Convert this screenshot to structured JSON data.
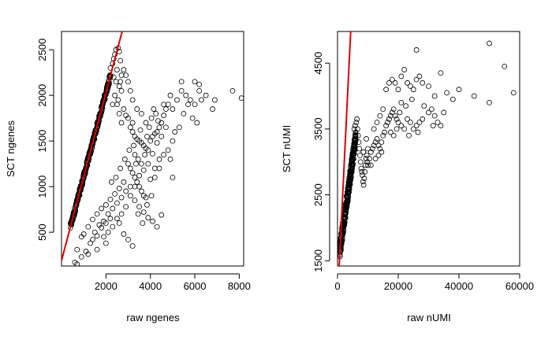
{
  "chart_data": [
    {
      "type": "scatter",
      "title": "",
      "xlabel": "raw ngenes",
      "ylabel": "SCT ngenes",
      "xlim": [
        0,
        8200
      ],
      "ylim": [
        130,
        2700
      ],
      "xticks": [
        2000,
        4000,
        6000,
        8000
      ],
      "yticks": [
        500,
        1000,
        1500,
        2000,
        2500
      ],
      "xtick_labels": [
        "2000",
        "4000",
        "6000",
        "8000"
      ],
      "ytick_labels": [
        "500",
        "1000",
        "1500",
        "2000",
        "2500"
      ],
      "fit_line": {
        "color": "#e00000",
        "slope": 0.92,
        "intercept": 190
      },
      "dense_band": {
        "x_from": 400,
        "x_to": 2200,
        "slope": 0.92,
        "intercept": 190,
        "spread": 35,
        "count": 260
      },
      "cloud_points": [
        [
          2200,
          2300
        ],
        [
          2300,
          2350
        ],
        [
          2350,
          2400
        ],
        [
          2400,
          2450
        ],
        [
          2450,
          2500
        ],
        [
          2550,
          2520
        ],
        [
          2600,
          2480
        ],
        [
          2650,
          2380
        ],
        [
          2500,
          2280
        ],
        [
          2350,
          2200
        ],
        [
          2450,
          2150
        ],
        [
          2600,
          2100
        ],
        [
          2700,
          2050
        ],
        [
          2400,
          2000
        ],
        [
          2300,
          1900
        ],
        [
          2500,
          1900
        ],
        [
          2800,
          1850
        ],
        [
          2600,
          1800
        ],
        [
          2900,
          1780
        ],
        [
          3000,
          1750
        ],
        [
          2700,
          1700
        ],
        [
          3100,
          1650
        ],
        [
          3200,
          1600
        ],
        [
          3300,
          1550
        ],
        [
          3400,
          1520
        ],
        [
          3500,
          1500
        ],
        [
          3600,
          1480
        ],
        [
          3700,
          1450
        ],
        [
          3800,
          1420
        ],
        [
          3900,
          1400
        ],
        [
          4000,
          1500
        ],
        [
          4100,
          1550
        ],
        [
          4200,
          1580
        ],
        [
          4300,
          1600
        ],
        [
          4400,
          1650
        ],
        [
          4500,
          1700
        ],
        [
          4600,
          1780
        ],
        [
          4700,
          1850
        ],
        [
          4800,
          1900
        ],
        [
          4900,
          2000
        ],
        [
          3000,
          1250
        ],
        [
          3100,
          1200
        ],
        [
          3200,
          1150
        ],
        [
          3300,
          1100
        ],
        [
          3400,
          1050
        ],
        [
          3500,
          1000
        ],
        [
          3600,
          950
        ],
        [
          3700,
          900
        ],
        [
          3800,
          880
        ],
        [
          4000,
          1080
        ],
        [
          4200,
          1200
        ],
        [
          4400,
          1300
        ],
        [
          2800,
          1050
        ],
        [
          2600,
          980
        ],
        [
          2400,
          920
        ],
        [
          2200,
          860
        ],
        [
          2000,
          800
        ],
        [
          1800,
          760
        ],
        [
          1600,
          700
        ],
        [
          1400,
          640
        ],
        [
          1200,
          560
        ],
        [
          1000,
          480
        ],
        [
          900,
          450
        ],
        [
          1500,
          500
        ],
        [
          1700,
          580
        ],
        [
          1900,
          620
        ],
        [
          2100,
          700
        ],
        [
          2300,
          760
        ],
        [
          2500,
          820
        ],
        [
          2700,
          880
        ],
        [
          2900,
          950
        ],
        [
          3100,
          1000
        ],
        [
          3300,
          850
        ],
        [
          3500,
          780
        ],
        [
          3700,
          720
        ],
        [
          3900,
          660
        ],
        [
          4100,
          620
        ],
        [
          4300,
          560
        ],
        [
          4500,
          690
        ],
        [
          2600,
          600
        ],
        [
          2800,
          480
        ],
        [
          3000,
          420
        ],
        [
          3200,
          350
        ],
        [
          2000,
          380
        ],
        [
          1600,
          310
        ],
        [
          1200,
          260
        ],
        [
          900,
          230
        ],
        [
          700,
          310
        ],
        [
          1100,
          290
        ],
        [
          600,
          170
        ],
        [
          700,
          150
        ],
        [
          4600,
          1900
        ],
        [
          5000,
          1850
        ],
        [
          5200,
          1950
        ],
        [
          5400,
          2050
        ],
        [
          5400,
          2150
        ],
        [
          5600,
          2000
        ],
        [
          5800,
          1950
        ],
        [
          6000,
          1900
        ],
        [
          6200,
          2050
        ],
        [
          6300,
          1950
        ],
        [
          6500,
          2000
        ],
        [
          6800,
          1850
        ],
        [
          6900,
          1950
        ],
        [
          7700,
          2050
        ],
        [
          8100,
          1970
        ],
        [
          6000,
          2150
        ],
        [
          6200,
          2120
        ],
        [
          5700,
          1900
        ],
        [
          5500,
          1800
        ],
        [
          5300,
          1650
        ],
        [
          5100,
          1600
        ],
        [
          5000,
          1500
        ],
        [
          4800,
          1400
        ],
        [
          4600,
          1350
        ],
        [
          4400,
          1200
        ],
        [
          4200,
          1100
        ],
        [
          5900,
          1750
        ],
        [
          6100,
          1700
        ],
        [
          5000,
          1100
        ],
        [
          4900,
          1300
        ],
        [
          4700,
          1650
        ],
        [
          4500,
          1550
        ],
        [
          4300,
          1480
        ],
        [
          4100,
          1360
        ],
        [
          3900,
          1250
        ],
        [
          3700,
          1180
        ],
        [
          3500,
          1120
        ],
        [
          3300,
          1000
        ],
        [
          3100,
          900
        ],
        [
          2900,
          780
        ],
        [
          2700,
          700
        ],
        [
          2500,
          650
        ],
        [
          2300,
          560
        ],
        [
          2100,
          500
        ],
        [
          1900,
          450
        ],
        [
          2800,
          2280
        ],
        [
          2900,
          2220
        ],
        [
          3000,
          2150
        ],
        [
          3100,
          2050
        ],
        [
          3200,
          1950
        ],
        [
          2700,
          2220
        ],
        [
          2650,
          2150
        ],
        [
          2550,
          1950
        ],
        [
          3400,
          1850
        ],
        [
          3600,
          1800
        ],
        [
          3800,
          1700
        ],
        [
          3950,
          1650
        ],
        [
          4050,
          1750
        ],
        [
          4150,
          1850
        ],
        [
          4250,
          1800
        ],
        [
          4350,
          1720
        ],
        [
          3300,
          1350
        ],
        [
          3450,
          1300
        ],
        [
          3600,
          1250
        ],
        [
          3750,
          1350
        ],
        [
          3850,
          1550
        ],
        [
          3550,
          1620
        ],
        [
          3250,
          1450
        ],
        [
          3050,
          1400
        ],
        [
          2850,
          1300
        ],
        [
          2650,
          1200
        ],
        [
          2450,
          1100
        ],
        [
          2250,
          1050
        ],
        [
          3450,
          700
        ],
        [
          3650,
          600
        ],
        [
          3850,
          800
        ],
        [
          4050,
          900
        ],
        [
          2200,
          650
        ],
        [
          2000,
          600
        ],
        [
          1800,
          550
        ],
        [
          1600,
          460
        ],
        [
          1400,
          420
        ],
        [
          1300,
          380
        ],
        [
          3200,
          1700
        ],
        [
          3350,
          1250
        ]
      ]
    },
    {
      "type": "scatter",
      "title": "",
      "xlabel": "raw nUMI",
      "ylabel": "SCT nUMI",
      "xlim": [
        0,
        60000
      ],
      "ylim": [
        1420,
        4980
      ],
      "xticks": [
        0,
        20000,
        40000,
        60000
      ],
      "yticks": [
        1500,
        2500,
        3500,
        4500
      ],
      "xtick_labels": [
        "0",
        "20000",
        "40000",
        "60000"
      ],
      "ytick_labels": [
        "1500",
        "2500",
        "3500",
        "4500"
      ],
      "fit_line": {
        "color": "#e00000",
        "slope": 0.94,
        "intercept": 900
      },
      "dense_band": {
        "x_from": 800,
        "x_to": 6000,
        "slope": 0.33,
        "intercept": 1400,
        "spread": 120,
        "count": 260
      },
      "cloud_points": [
        [
          5500,
          3500
        ],
        [
          5800,
          3550
        ],
        [
          6000,
          3450
        ],
        [
          6200,
          3600
        ],
        [
          6400,
          3650
        ],
        [
          6600,
          3500
        ],
        [
          6800,
          3400
        ],
        [
          7000,
          3300
        ],
        [
          7200,
          3200
        ],
        [
          7400,
          3100
        ],
        [
          7600,
          3000
        ],
        [
          7800,
          2900
        ],
        [
          8000,
          2850
        ],
        [
          8200,
          2800
        ],
        [
          8400,
          2700
        ],
        [
          8600,
          2650
        ],
        [
          8800,
          2750
        ],
        [
          9000,
          2850
        ],
        [
          9200,
          2950
        ],
        [
          9400,
          3050
        ],
        [
          9600,
          3100
        ],
        [
          9800,
          3000
        ],
        [
          10000,
          2950
        ],
        [
          10500,
          3050
        ],
        [
          11000,
          3150
        ],
        [
          11500,
          3200
        ],
        [
          12000,
          3250
        ],
        [
          12500,
          3300
        ],
        [
          13000,
          3350
        ],
        [
          13500,
          3250
        ],
        [
          14000,
          3200
        ],
        [
          14500,
          3300
        ],
        [
          15000,
          3400
        ],
        [
          15500,
          3450
        ],
        [
          16000,
          3550
        ],
        [
          16500,
          3600
        ],
        [
          17000,
          3650
        ],
        [
          17500,
          3700
        ],
        [
          18000,
          3750
        ],
        [
          18500,
          3800
        ],
        [
          19000,
          3700
        ],
        [
          19500,
          3650
        ],
        [
          20000,
          3600
        ],
        [
          21000,
          3550
        ],
        [
          22000,
          3500
        ],
        [
          23000,
          3650
        ],
        [
          24000,
          3600
        ],
        [
          25000,
          3500
        ],
        [
          26000,
          3550
        ],
        [
          27000,
          3600
        ],
        [
          28000,
          3650
        ],
        [
          30000,
          3750
        ],
        [
          31000,
          3800
        ],
        [
          32000,
          3700
        ],
        [
          33000,
          3600
        ],
        [
          35000,
          3750
        ],
        [
          16000,
          4100
        ],
        [
          17000,
          4200
        ],
        [
          18000,
          4250
        ],
        [
          19000,
          4200
        ],
        [
          20000,
          4100
        ],
        [
          21000,
          4300
        ],
        [
          22000,
          4400
        ],
        [
          23000,
          4200
        ],
        [
          24000,
          4150
        ],
        [
          25000,
          4100
        ],
        [
          26000,
          4250
        ],
        [
          27000,
          4300
        ],
        [
          28000,
          4200
        ],
        [
          30000,
          4150
        ],
        [
          32000,
          4000
        ],
        [
          34000,
          4350
        ],
        [
          36000,
          4050
        ],
        [
          38000,
          3950
        ],
        [
          40000,
          4100
        ],
        [
          45000,
          4000
        ],
        [
          50000,
          3900
        ],
        [
          50000,
          4800
        ],
        [
          55000,
          4450
        ],
        [
          58000,
          4050
        ],
        [
          26000,
          4700
        ],
        [
          21000,
          3900
        ],
        [
          22500,
          3850
        ],
        [
          24500,
          3950
        ],
        [
          12000,
          3500
        ],
        [
          13000,
          3600
        ],
        [
          14000,
          3700
        ],
        [
          15000,
          3800
        ],
        [
          11000,
          2950
        ],
        [
          10000,
          3200
        ],
        [
          9500,
          3350
        ],
        [
          12500,
          3050
        ],
        [
          13500,
          3100
        ],
        [
          14500,
          3150
        ],
        [
          17500,
          3450
        ],
        [
          18500,
          3400
        ],
        [
          19500,
          3500
        ],
        [
          20500,
          3750
        ],
        [
          23500,
          3400
        ],
        [
          26500,
          3450
        ],
        [
          28500,
          3850
        ],
        [
          31500,
          3550
        ],
        [
          34000,
          3550
        ],
        [
          8500,
          3150
        ]
      ]
    }
  ]
}
